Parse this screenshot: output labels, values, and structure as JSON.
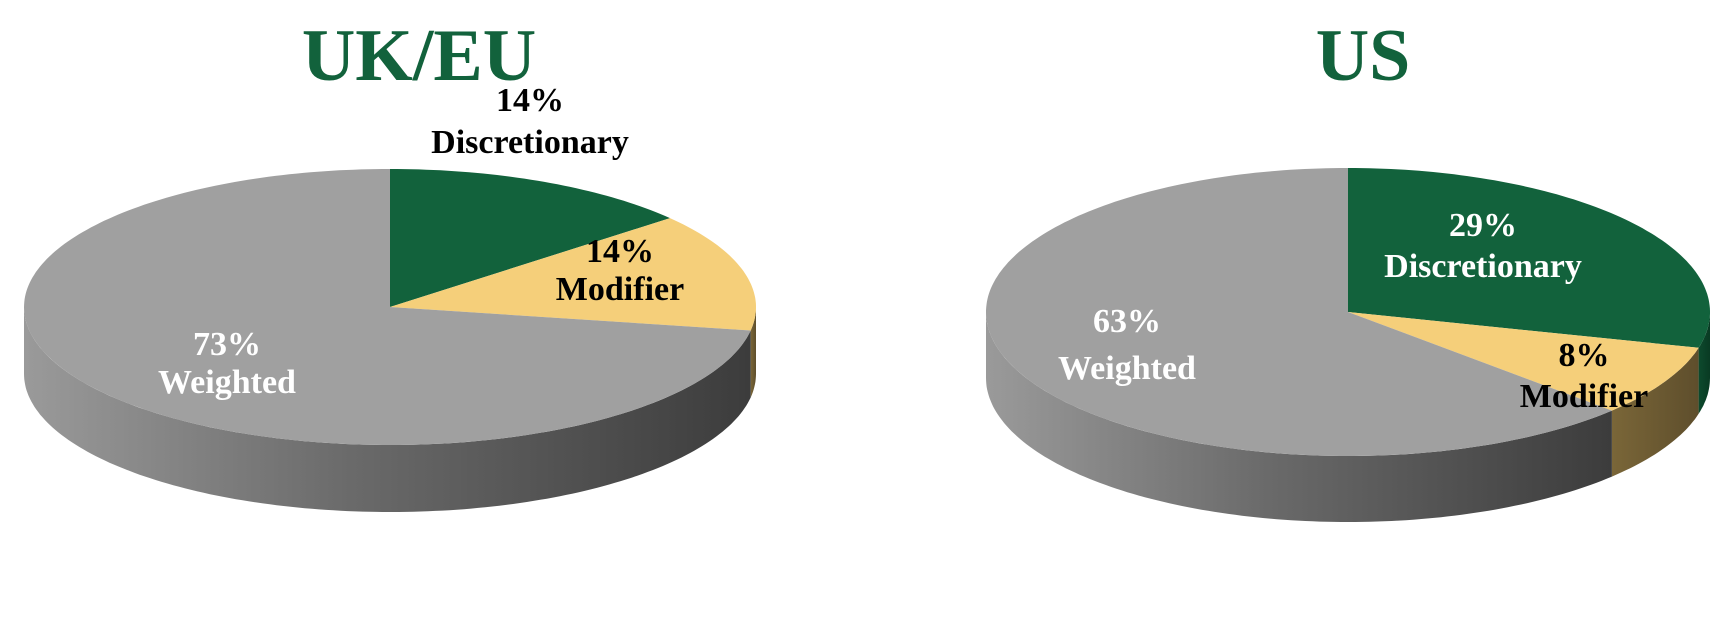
{
  "chart_data": [
    {
      "type": "pie",
      "title": "UK/EU",
      "slices": [
        {
          "name": "Discretionary",
          "value": 14,
          "label_pct": "14%",
          "color": "#12623C",
          "label_color": "#000000"
        },
        {
          "name": "Modifier",
          "value": 14,
          "label_pct": "14%",
          "color": "#F5CF7A",
          "label_color": "#000000"
        },
        {
          "name": "Weighted",
          "value": 73,
          "label_pct": "73%",
          "color": "#A0A0A0",
          "label_color": "#FFFFFF"
        }
      ],
      "style": "3d"
    },
    {
      "type": "pie",
      "title": "US",
      "slices": [
        {
          "name": "Discretionary",
          "value": 29,
          "label_pct": "29%",
          "color": "#12623C",
          "label_color": "#FFFFFF"
        },
        {
          "name": "Modifier",
          "value": 8,
          "label_pct": "8%",
          "color": "#F5CF7A",
          "label_color": "#000000"
        },
        {
          "name": "Weighted",
          "value": 63,
          "label_pct": "63%",
          "color": "#A0A0A0",
          "label_color": "#FFFFFF"
        }
      ],
      "style": "3d"
    }
  ],
  "colors": {
    "title": "#12623C"
  }
}
